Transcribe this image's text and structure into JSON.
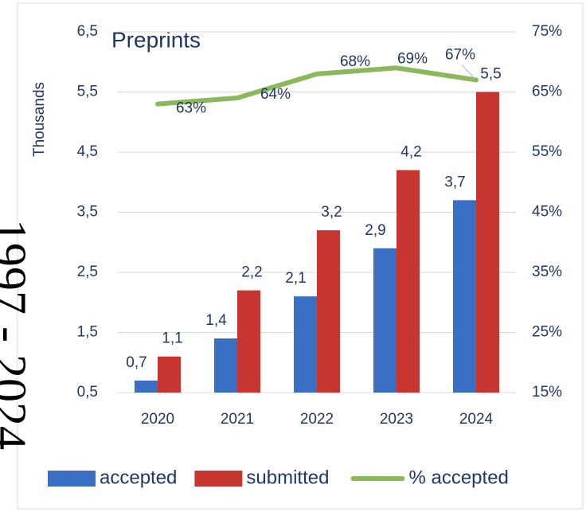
{
  "chart_data": {
    "type": "bar-line",
    "title": "Preprints",
    "annotation": "1997 - 2024",
    "y_label": "Thousands",
    "categories": [
      "2020",
      "2021",
      "2022",
      "2023",
      "2024"
    ],
    "series": [
      {
        "name": "accepted",
        "type": "bar",
        "color": "#3a6fc4",
        "values": [
          0.7,
          1.4,
          2.1,
          2.9,
          3.7
        ],
        "value_labels": [
          "0,7",
          "1,4",
          "2,1",
          "2,9",
          "3,7"
        ]
      },
      {
        "name": "submitted",
        "type": "bar",
        "color": "#c73530",
        "values": [
          1.1,
          2.2,
          3.2,
          4.2,
          5.5
        ],
        "value_labels": [
          "1,1",
          "2,2",
          "3,2",
          "4,2",
          "5,5"
        ]
      },
      {
        "name": "% accepted",
        "type": "line",
        "axis": "y2",
        "color": "#8cb85c",
        "values": [
          63,
          64,
          68,
          69,
          67
        ],
        "value_labels": [
          "63%",
          "64%",
          "68%",
          "69%",
          "67%"
        ]
      }
    ],
    "ylim": [
      0.5,
      6.5
    ],
    "yticks": [
      {
        "value": 0.5,
        "label": "0,5"
      },
      {
        "value": 1.5,
        "label": "1,5"
      },
      {
        "value": 2.5,
        "label": "2,5"
      },
      {
        "value": 3.5,
        "label": "3,5"
      },
      {
        "value": 4.5,
        "label": "4,5"
      },
      {
        "value": 5.5,
        "label": "5,5"
      },
      {
        "value": 6.5,
        "label": "6,5"
      }
    ],
    "y2lim": [
      15,
      75
    ],
    "y2ticks": [
      {
        "value": 15,
        "label": "15%"
      },
      {
        "value": 25,
        "label": "25%"
      },
      {
        "value": 35,
        "label": "35%"
      },
      {
        "value": 45,
        "label": "45%"
      },
      {
        "value": 55,
        "label": "55%"
      },
      {
        "value": 65,
        "label": "65%"
      },
      {
        "value": 75,
        "label": "75%"
      }
    ],
    "grid": true,
    "legend": "bottom"
  }
}
